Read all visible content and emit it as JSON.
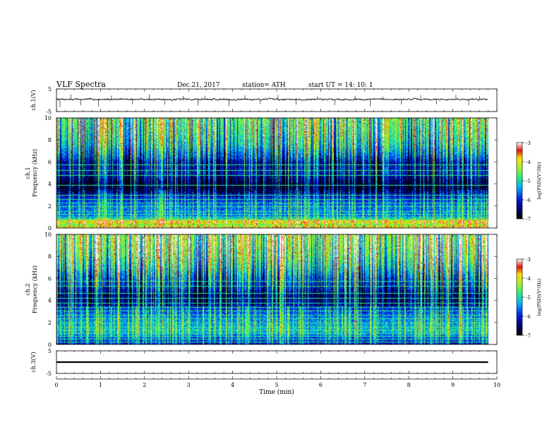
{
  "header": {
    "title": "VLF  Spectra",
    "date": "Dec.21, 2017",
    "station": "station= ATH",
    "start": "start  UT  =   14: 10: 1"
  },
  "chart_data": [
    {
      "type": "line",
      "name": "ch1-waveform",
      "ylabel": "ch.1(V)",
      "ylim": [
        -5,
        5
      ],
      "yticks": [
        "5",
        "-5"
      ],
      "xlim": [
        0,
        10
      ],
      "data_extent_min": 9.8,
      "color": "#000000",
      "baseline_v": 0.4,
      "noise_amplitude_v": 0.5,
      "spikes": [
        {
          "t": 0.08,
          "v": -3.0
        },
        {
          "t": 0.33,
          "v": 2.5
        },
        {
          "t": 0.55,
          "v": -2.2
        },
        {
          "t": 0.95,
          "v": -2.8
        },
        {
          "t": 1.25,
          "v": 2.1
        },
        {
          "t": 1.72,
          "v": -1.8
        },
        {
          "t": 2.11,
          "v": 2.6
        },
        {
          "t": 2.46,
          "v": -2.0
        },
        {
          "t": 2.88,
          "v": 1.9
        },
        {
          "t": 3.21,
          "v": -2.4
        },
        {
          "t": 3.37,
          "v": 2.0
        },
        {
          "t": 3.92,
          "v": -2.6
        },
        {
          "t": 4.28,
          "v": 2.2
        },
        {
          "t": 4.62,
          "v": -1.6
        },
        {
          "t": 5.03,
          "v": 2.3
        },
        {
          "t": 5.44,
          "v": -1.9
        },
        {
          "t": 5.92,
          "v": 1.7
        },
        {
          "t": 6.32,
          "v": -2.1
        },
        {
          "t": 6.78,
          "v": 2.0
        },
        {
          "t": 7.12,
          "v": -2.7
        },
        {
          "t": 7.41,
          "v": 1.6
        },
        {
          "t": 7.83,
          "v": -1.9
        },
        {
          "t": 8.27,
          "v": 2.2
        },
        {
          "t": 8.63,
          "v": -1.8
        },
        {
          "t": 9.07,
          "v": 2.4
        },
        {
          "t": 9.36,
          "v": -2.2
        },
        {
          "t": 9.61,
          "v": 1.8
        }
      ]
    },
    {
      "type": "heatmap",
      "name": "ch1-spectrogram",
      "ylabel": "ch.1\nFrequency  (kHz)",
      "ylim": [
        0,
        10
      ],
      "yticks": [
        "0",
        "2",
        "4",
        "6",
        "8",
        "10"
      ],
      "xlim": [
        0,
        10
      ],
      "data_extent_min": 9.8,
      "z_range": [
        -7,
        -3
      ],
      "colorbar": {
        "label": "log(PSD)(V²/Hz)",
        "ticks": [
          "-3",
          "-4",
          "-5",
          "-6",
          "-7"
        ]
      },
      "band_profile": [
        {
          "f": 0.0,
          "psd": -3.8
        },
        {
          "f": 0.3,
          "psd": -4.6
        },
        {
          "f": 0.6,
          "psd": -3.9
        },
        {
          "f": 1.0,
          "psd": -5.6
        },
        {
          "f": 2.0,
          "psd": -5.7
        },
        {
          "f": 3.0,
          "psd": -6.3
        },
        {
          "f": 3.4,
          "psd": -6.8
        },
        {
          "f": 4.2,
          "psd": -6.7
        },
        {
          "f": 5.0,
          "psd": -6.1
        },
        {
          "f": 6.0,
          "psd": -6.2
        },
        {
          "f": 6.5,
          "psd": -5.7
        },
        {
          "f": 7.5,
          "psd": -5.1
        },
        {
          "f": 8.5,
          "psd": -4.8
        },
        {
          "f": 10.0,
          "psd": -4.6
        }
      ],
      "tone_lines_khz": [
        0.35,
        0.55,
        0.7,
        1.0,
        1.3,
        1.55,
        2.0,
        2.3,
        2.65,
        3.0,
        3.9,
        4.8,
        5.25,
        5.8
      ],
      "sferic_density_per_min": 24,
      "seed": 17
    },
    {
      "type": "heatmap",
      "name": "ch2-spectrogram",
      "ylabel": "ch.2\nFrequency  (kHz)",
      "ylim": [
        0,
        10
      ],
      "yticks": [
        "0",
        "2",
        "4",
        "6",
        "8",
        "10"
      ],
      "xlim": [
        0,
        10
      ],
      "data_extent_min": 9.8,
      "z_range": [
        -7,
        -3
      ],
      "colorbar": {
        "label": "log(PSD)(V²/Hz)",
        "ticks": [
          "-3",
          "-4",
          "-5",
          "-6",
          "-7"
        ]
      },
      "band_profile": [
        {
          "f": 0.0,
          "psd": -6.3
        },
        {
          "f": 0.6,
          "psd": -5.9
        },
        {
          "f": 1.2,
          "psd": -5.3
        },
        {
          "f": 1.8,
          "psd": -5.4
        },
        {
          "f": 2.4,
          "psd": -5.6
        },
        {
          "f": 3.2,
          "psd": -6.0
        },
        {
          "f": 3.8,
          "psd": -6.2
        },
        {
          "f": 4.5,
          "psd": -6.4
        },
        {
          "f": 5.2,
          "psd": -5.9
        },
        {
          "f": 6.0,
          "psd": -5.6
        },
        {
          "f": 7.0,
          "psd": -5.0
        },
        {
          "f": 8.0,
          "psd": -4.6
        },
        {
          "f": 9.0,
          "psd": -4.4
        },
        {
          "f": 10.0,
          "psd": -4.3
        }
      ],
      "tone_lines_khz": [
        0.25,
        0.5,
        0.75,
        1.05,
        1.35,
        1.6,
        2.0,
        2.35,
        2.7,
        3.05,
        3.4,
        3.8,
        4.2,
        4.7,
        5.3,
        5.8
      ],
      "sferic_density_per_min": 26,
      "seed": 41
    },
    {
      "type": "line",
      "name": "ch3-waveform",
      "ylabel": "ch.3(V)",
      "ylim": [
        -5,
        5
      ],
      "yticks": [
        "5",
        "-5"
      ],
      "xlim": [
        0,
        10
      ],
      "data_extent_min": 9.8,
      "color": "#000000",
      "baseline_v": 0.0,
      "band_half_width_v": 0.35
    }
  ],
  "x_axis": {
    "label": "Time  (min)",
    "ticks": [
      "0",
      "1",
      "2",
      "3",
      "4",
      "5",
      "6",
      "7",
      "8",
      "9",
      "10"
    ]
  }
}
